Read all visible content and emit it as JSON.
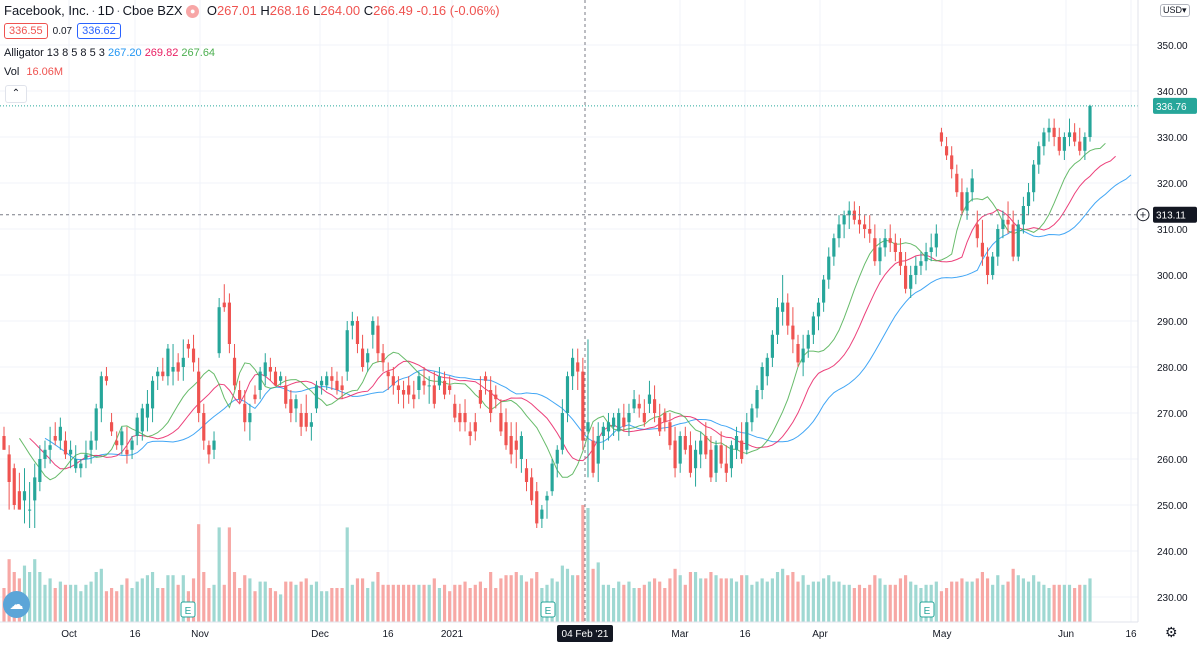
{
  "header": {
    "symbol": "Facebook, Inc.",
    "interval": "1D",
    "exchange": "Cboe BZX",
    "ohlc": {
      "o_label": "O",
      "open": "267.01",
      "h_label": "H",
      "high": "268.16",
      "l_label": "L",
      "low": "264.00",
      "c_label": "C",
      "close": "266.49",
      "change": "-0.16 (-0.06%)"
    },
    "bid": "336.55",
    "spread": "0.07",
    "ask": "336.62"
  },
  "indicators": {
    "alligator": {
      "name": "Alligator 13 8 5 8 5 3",
      "jaw": "267.20",
      "teeth": "269.82",
      "lips": "267.64",
      "jaw_color": "#2196f3",
      "teeth_color": "#e91e63",
      "lips_color": "#4caf50"
    },
    "volume": {
      "name": "Vol",
      "value": "16.06M"
    }
  },
  "currency": "USD",
  "icons": {
    "collapse": "chevron-up-icon",
    "settings": "gear-icon",
    "logo": "tradingview-logo",
    "crosshair": "plus-circle-icon",
    "earnings": "earnings-marker-icon"
  },
  "colors": {
    "up": "#26a69a",
    "down": "#ef5350",
    "up_vol": "#9fd8d2",
    "down_vol": "#f7a8a5"
  },
  "chart_data": {
    "type": "candlestick",
    "grid": true,
    "price_axis": {
      "ticks": [
        "230.00",
        "240.00",
        "250.00",
        "260.00",
        "270.00",
        "280.00",
        "290.00",
        "300.00",
        "310.00",
        "320.00",
        "330.00",
        "340.00",
        "350.00"
      ],
      "range": [
        225,
        358
      ]
    },
    "time_axis": {
      "ticks": [
        "Oct",
        "16",
        "Nov",
        "Dec",
        "16",
        "2021",
        "04 Feb '21",
        "Mar",
        "16",
        "Apr",
        "May",
        "Jun",
        "16"
      ]
    },
    "last_price": "336.76",
    "crosshair_price": "313.11",
    "crosshair_date": "04 Feb '21",
    "candles": [
      [
        265,
        267,
        262,
        262
      ],
      [
        261,
        263,
        249,
        255
      ],
      [
        258,
        259,
        249,
        250
      ],
      [
        253,
        257,
        249,
        249
      ],
      [
        251,
        258,
        246,
        253
      ],
      [
        249,
        255,
        245,
        249
      ],
      [
        251,
        259,
        245,
        256
      ],
      [
        255,
        263,
        253,
        260
      ],
      [
        260,
        264,
        258,
        262
      ],
      [
        262,
        267,
        259,
        263
      ],
      [
        265,
        268,
        263,
        264
      ],
      [
        264,
        269,
        262,
        267
      ],
      [
        264,
        266,
        260,
        261
      ],
      [
        261,
        264,
        258,
        262
      ],
      [
        258,
        263,
        257,
        260
      ],
      [
        258,
        260,
        256,
        259
      ],
      [
        260,
        264,
        258,
        261
      ],
      [
        262,
        266,
        259,
        264
      ],
      [
        264,
        272,
        262,
        271
      ],
      [
        271,
        279,
        268,
        278
      ],
      [
        278,
        280,
        276,
        277
      ],
      [
        268,
        270,
        265,
        266
      ],
      [
        264,
        266,
        262,
        263
      ],
      [
        263,
        267,
        261,
        266
      ],
      [
        262,
        267,
        259,
        261
      ],
      [
        262,
        265,
        260,
        264
      ],
      [
        265,
        270,
        263,
        269
      ],
      [
        266,
        272,
        264,
        271
      ],
      [
        269,
        275,
        266,
        272
      ],
      [
        271,
        278,
        268,
        277
      ],
      [
        278,
        280,
        275,
        279
      ],
      [
        279,
        282,
        277,
        278
      ],
      [
        278,
        285,
        276,
        284
      ],
      [
        279,
        285,
        276,
        280
      ],
      [
        281,
        283,
        277,
        279
      ],
      [
        280,
        286,
        277,
        282
      ],
      [
        285,
        286,
        282,
        284
      ],
      [
        284,
        287,
        279,
        281
      ],
      [
        279,
        282,
        268,
        270
      ],
      [
        270,
        272,
        262,
        264
      ],
      [
        263,
        264,
        259,
        261
      ],
      [
        262,
        266,
        260,
        264
      ],
      [
        283,
        295,
        282,
        293
      ],
      [
        294,
        298,
        292,
        293
      ],
      [
        294,
        296,
        283,
        285
      ],
      [
        282,
        285,
        275,
        276
      ],
      [
        275,
        277,
        272,
        273
      ],
      [
        272,
        275,
        266,
        268
      ],
      [
        268,
        272,
        264,
        270
      ],
      [
        274,
        276,
        272,
        273
      ],
      [
        275,
        280,
        273,
        279
      ],
      [
        278,
        283,
        276,
        281
      ],
      [
        280,
        282,
        277,
        279
      ],
      [
        279,
        280,
        276,
        276
      ],
      [
        277,
        279,
        276,
        278
      ],
      [
        276,
        278,
        271,
        272
      ],
      [
        273,
        275,
        268,
        270
      ],
      [
        271,
        274,
        268,
        273
      ],
      [
        270,
        272,
        265,
        267
      ],
      [
        270,
        274,
        266,
        267
      ],
      [
        267,
        270,
        264,
        268
      ],
      [
        271,
        277,
        270,
        276
      ],
      [
        276,
        278,
        274,
        277
      ],
      [
        276,
        279,
        275,
        278
      ],
      [
        278,
        280,
        275,
        277
      ],
      [
        277,
        279,
        274,
        275
      ],
      [
        276,
        278,
        273,
        275
      ],
      [
        279,
        290,
        277,
        288
      ],
      [
        289,
        292,
        286,
        290
      ],
      [
        290,
        291,
        283,
        285
      ],
      [
        284,
        287,
        279,
        280
      ],
      [
        281,
        284,
        279,
        283
      ],
      [
        287,
        291,
        284,
        290
      ],
      [
        289,
        291,
        281,
        283
      ],
      [
        283,
        285,
        279,
        281
      ],
      [
        279,
        281,
        275,
        278
      ],
      [
        278,
        280,
        274,
        276
      ],
      [
        276,
        278,
        272,
        275
      ],
      [
        275,
        277,
        271,
        274
      ],
      [
        276,
        278,
        272,
        274
      ],
      [
        274,
        277,
        271,
        273
      ],
      [
        275,
        279,
        273,
        278
      ],
      [
        277,
        280,
        274,
        276
      ],
      [
        276,
        278,
        272,
        276
      ],
      [
        276,
        279,
        271,
        272
      ],
      [
        276,
        280,
        275,
        278
      ],
      [
        277,
        279,
        273,
        274
      ],
      [
        276,
        278,
        274,
        275
      ],
      [
        272,
        274,
        268,
        269
      ],
      [
        270,
        272,
        266,
        268
      ],
      [
        270,
        273,
        266,
        268
      ],
      [
        266,
        268,
        263,
        265
      ],
      [
        268,
        270,
        264,
        266
      ],
      [
        275,
        278,
        271,
        272
      ],
      [
        278,
        279,
        274,
        277
      ],
      [
        275,
        278,
        268,
        270
      ],
      [
        274,
        276,
        271,
        273
      ],
      [
        270,
        273,
        265,
        266
      ],
      [
        268,
        271,
        262,
        263
      ],
      [
        265,
        268,
        259,
        261
      ],
      [
        264,
        268,
        258,
        262
      ],
      [
        260,
        266,
        257,
        265
      ],
      [
        258,
        260,
        253,
        255
      ],
      [
        256,
        258,
        250,
        251
      ],
      [
        253,
        255,
        245,
        246
      ],
      [
        247,
        250,
        245,
        249
      ],
      [
        251,
        253,
        247,
        252
      ],
      [
        253,
        260,
        252,
        259
      ],
      [
        259,
        263,
        256,
        262
      ],
      [
        262,
        273,
        261,
        270
      ],
      [
        270,
        279,
        268,
        278
      ],
      [
        278,
        284,
        275,
        282
      ],
      [
        281,
        284,
        275,
        279
      ],
      [
        279,
        282,
        262,
        264
      ],
      [
        266,
        286,
        256,
        268
      ],
      [
        264,
        267,
        256,
        257
      ],
      [
        259,
        268,
        255,
        265
      ],
      [
        265,
        268,
        262,
        267
      ],
      [
        266,
        270,
        264,
        268
      ],
      [
        267,
        270,
        265,
        269
      ],
      [
        266,
        271,
        264,
        270
      ],
      [
        269,
        272,
        266,
        267
      ],
      [
        268,
        272,
        265,
        270
      ],
      [
        271,
        275,
        270,
        273
      ],
      [
        272,
        274,
        269,
        271
      ],
      [
        270,
        273,
        267,
        268
      ],
      [
        272,
        277,
        270,
        274
      ],
      [
        273,
        276,
        268,
        270
      ],
      [
        269,
        272,
        265,
        266
      ],
      [
        270,
        271,
        266,
        268
      ],
      [
        268,
        270,
        262,
        263
      ],
      [
        264,
        267,
        256,
        258
      ],
      [
        259,
        266,
        257,
        265
      ],
      [
        265,
        267,
        261,
        262
      ],
      [
        263,
        266,
        256,
        257
      ],
      [
        258,
        264,
        254,
        262
      ],
      [
        261,
        266,
        258,
        264
      ],
      [
        265,
        268,
        260,
        261
      ],
      [
        262,
        265,
        255,
        256
      ],
      [
        257,
        264,
        255,
        263
      ],
      [
        263,
        266,
        258,
        259
      ],
      [
        259,
        263,
        255,
        257
      ],
      [
        258,
        264,
        256,
        263
      ],
      [
        262,
        267,
        260,
        265
      ],
      [
        264,
        268,
        259,
        260
      ],
      [
        262,
        270,
        261,
        268
      ],
      [
        268,
        272,
        266,
        271
      ],
      [
        271,
        276,
        269,
        275
      ],
      [
        275,
        281,
        273,
        280
      ],
      [
        278,
        283,
        276,
        282
      ],
      [
        282,
        288,
        280,
        287
      ],
      [
        287,
        295,
        285,
        293
      ],
      [
        292,
        300,
        289,
        294
      ],
      [
        294,
        296,
        287,
        289
      ],
      [
        289,
        293,
        283,
        286
      ],
      [
        285,
        287,
        280,
        281
      ],
      [
        281,
        287,
        278,
        284
      ],
      [
        284,
        288,
        282,
        287
      ],
      [
        287,
        292,
        285,
        291
      ],
      [
        291,
        295,
        288,
        294
      ],
      [
        294,
        300,
        292,
        299
      ],
      [
        299,
        306,
        297,
        304
      ],
      [
        304,
        309,
        302,
        308
      ],
      [
        308,
        313,
        306,
        311
      ],
      [
        311,
        314,
        308,
        313
      ],
      [
        313,
        316,
        310,
        314
      ],
      [
        314,
        316,
        311,
        312
      ],
      [
        312,
        315,
        309,
        311
      ],
      [
        311,
        313,
        308,
        310
      ],
      [
        310,
        313,
        307,
        309
      ],
      [
        308,
        311,
        302,
        303
      ],
      [
        303,
        308,
        300,
        306
      ],
      [
        306,
        310,
        304,
        308
      ],
      [
        308,
        311,
        305,
        307
      ],
      [
        307,
        309,
        303,
        305
      ],
      [
        305,
        308,
        300,
        302
      ],
      [
        302,
        305,
        296,
        297
      ],
      [
        297,
        302,
        295,
        300
      ],
      [
        300,
        304,
        298,
        302
      ],
      [
        302,
        305,
        300,
        303
      ],
      [
        303,
        307,
        301,
        305
      ],
      [
        305,
        309,
        303,
        306
      ],
      [
        306,
        311,
        304,
        309
      ],
      [
        331,
        332,
        328,
        329
      ],
      [
        328,
        330,
        325,
        326
      ],
      [
        326,
        328,
        321,
        323
      ],
      [
        322,
        324,
        317,
        318
      ],
      [
        318,
        321,
        313,
        314
      ],
      [
        314,
        319,
        312,
        318
      ],
      [
        318,
        323,
        316,
        321
      ],
      [
        311,
        314,
        306,
        308
      ],
      [
        307,
        312,
        302,
        304
      ],
      [
        304,
        306,
        298,
        300
      ],
      [
        300,
        305,
        299,
        304
      ],
      [
        304,
        311,
        302,
        310
      ],
      [
        310,
        314,
        308,
        312
      ],
      [
        312,
        316,
        309,
        311
      ],
      [
        311,
        314,
        303,
        304
      ],
      [
        304,
        312,
        303,
        311
      ],
      [
        311,
        317,
        309,
        315
      ],
      [
        315,
        320,
        313,
        318
      ],
      [
        318,
        325,
        316,
        324
      ],
      [
        324,
        329,
        322,
        328
      ],
      [
        328,
        332,
        326,
        331
      ],
      [
        331,
        334,
        329,
        332
      ],
      [
        332,
        334,
        328,
        330
      ],
      [
        330,
        332,
        326,
        327
      ],
      [
        327,
        331,
        325,
        330
      ],
      [
        330,
        334,
        328,
        331
      ],
      [
        331,
        333,
        328,
        329
      ],
      [
        329,
        332,
        326,
        327
      ],
      [
        327,
        331,
        325,
        330
      ],
      [
        330,
        337,
        329,
        336.76
      ]
    ]
  }
}
